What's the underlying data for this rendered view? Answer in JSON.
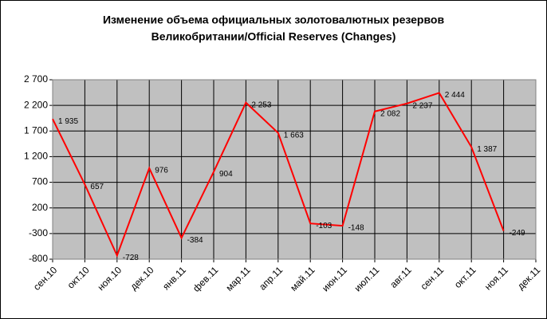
{
  "chart_data": {
    "type": "line",
    "title": [
      "Изменение объема официальных золотовалютных резервов",
      "Великобритании/Official Reserves (Changes)"
    ],
    "categories": [
      "сен.10",
      "окт.10",
      "ноя.10",
      "дек.10",
      "янв.11",
      "фев.11",
      "мар.11",
      "апр.11",
      "май.11",
      "июн.11",
      "июл.11",
      "авг.11",
      "сен.11",
      "окт.11",
      "ноя.11",
      "дек.11"
    ],
    "values": [
      1935,
      657,
      -728,
      976,
      -384,
      904,
      2253,
      1663,
      -103,
      -148,
      2082,
      2237,
      2444,
      1387,
      -249,
      null
    ],
    "value_labels": [
      "1 935",
      "657",
      "-728",
      "976",
      "-384",
      "904",
      "2 253",
      "1 663",
      "-103",
      "-148",
      "2 082",
      "2 237",
      "2 444",
      "1 387",
      "-249",
      null
    ],
    "color": "#ff0000",
    "ylim": [
      -800,
      2700
    ],
    "yticks": [
      -800,
      -300,
      200,
      700,
      {
        "value": 1200,
        "label": "1 200"
      },
      {
        "value": 1700,
        "label": "1 700"
      },
      {
        "value": 2200,
        "label": "2 200"
      },
      {
        "value": 2700,
        "label": "2 700"
      }
    ],
    "grid": true
  }
}
